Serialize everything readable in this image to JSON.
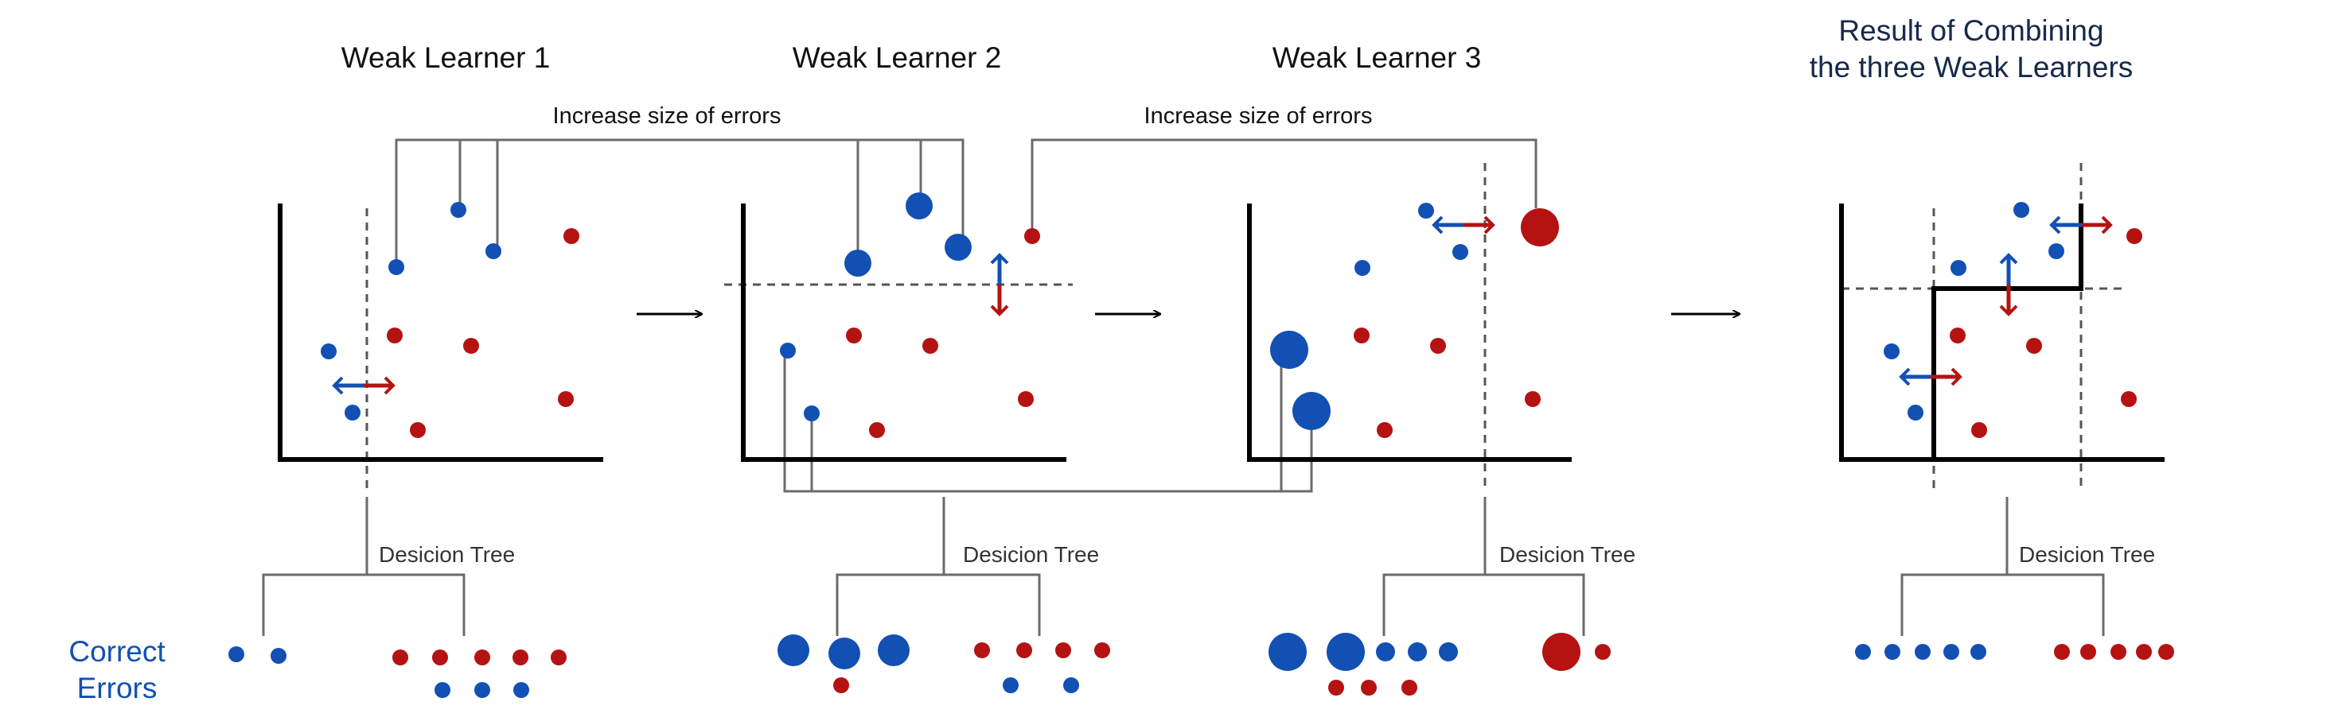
{
  "colors": {
    "correct": "#1250b4",
    "error": "#b51212",
    "axis": "#000000",
    "connector": "#6b6b6b",
    "result_title": "#152a4a"
  },
  "panels": [
    {
      "title": "Weak Learner 1"
    },
    {
      "title": "Weak Learner 2"
    },
    {
      "title": "Weak Learner 3"
    }
  ],
  "result": {
    "title_line1": "Result of Combining",
    "title_line2": "the three Weak Learners"
  },
  "annotations": {
    "increase_1": "Increase size of errors",
    "increase_2": "Increase size of errors"
  },
  "trees": [
    {
      "label": "Desicion Tree"
    },
    {
      "label": "Desicion Tree"
    },
    {
      "label": "Desicion Tree"
    },
    {
      "label": "Desicion Tree"
    }
  ],
  "legend": {
    "correct": "Correct",
    "errors": "Errors"
  },
  "arrows": [
    "→",
    "→",
    "→"
  ]
}
